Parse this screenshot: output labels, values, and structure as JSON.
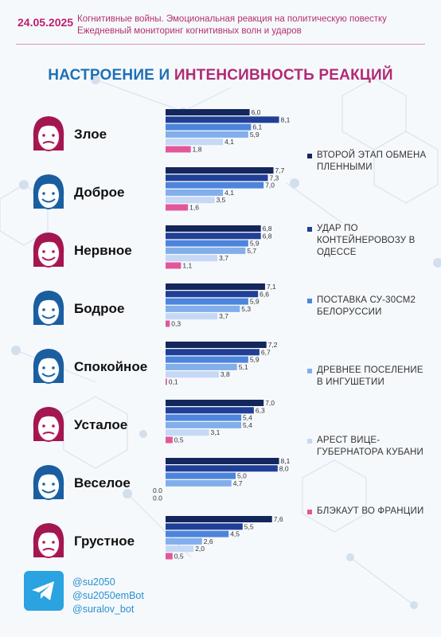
{
  "header": {
    "date": "24.05.2025",
    "line1": "Когнитивные войны. Эмоциональная реакция на политическую повестку",
    "line2": "Ежедневный мониторинг когнитивных волн и ударов"
  },
  "title_part1": "НАСТРОЕНИЕ И ",
  "title_part2": "ИНТЕНСИВНОСТЬ РЕАКЦИЙ",
  "colors": [
    "#14275c",
    "#203f96",
    "#4d84dc",
    "#82aeeb",
    "#c5d8f6",
    "#e2579a"
  ],
  "chart_data": {
    "type": "bar",
    "orientation": "horizontal",
    "title": "НАСТРОЕНИЕ И ИНТЕНСИВНОСТЬ РЕАКЦИЙ",
    "categories": [
      "Злое",
      "Доброе",
      "Нервное",
      "Бодрое",
      "Спокойное",
      "Усталое",
      "Веселое",
      "Грустное"
    ],
    "series": [
      {
        "name": "ВТОРОЙ ЭТАП ОБМЕНА ПЛЕННЫМИ",
        "values": [
          6.0,
          7.7,
          6.8,
          7.1,
          7.2,
          7.0,
          8.1,
          7.6
        ]
      },
      {
        "name": "УДАР ПО КОНТЕЙНЕРОВОЗУ В ОДЕССЕ",
        "values": [
          8.1,
          7.3,
          6.8,
          6.6,
          6.7,
          6.3,
          8.0,
          5.5
        ]
      },
      {
        "name": "ПОСТАВКА СУ-30СМ2 БЕЛОРУССИИ",
        "values": [
          6.1,
          7.0,
          5.9,
          5.9,
          5.9,
          5.4,
          5.0,
          4.5
        ]
      },
      {
        "name": "ДРЕВНЕЕ ПОСЕЛЕНИЕ В ИНГУШЕТИИ",
        "values": [
          5.9,
          4.1,
          5.7,
          5.3,
          5.1,
          5.4,
          4.7,
          2.6
        ]
      },
      {
        "name": "АРЕСТ ВИЦЕ-ГУБЕРНАТОРА КУБАНИ",
        "values": [
          4.1,
          3.5,
          3.7,
          3.7,
          3.8,
          3.1,
          0.0,
          2.0
        ]
      },
      {
        "name": "БЛЭКАУТ ВО ФРАНЦИИ",
        "values": [
          1.8,
          1.6,
          1.1,
          0.3,
          0.1,
          0.5,
          0.0,
          0.5
        ]
      }
    ],
    "value_labels": [
      [
        "6,0",
        "8,1",
        "6,1",
        "5,9",
        "4,1",
        "1,8"
      ],
      [
        "7,7",
        "7,3",
        "7,0",
        "4,1",
        "3,5",
        "1,6"
      ],
      [
        "6,8",
        "6,8",
        "5,9",
        "5,7",
        "3,7",
        "1,1"
      ],
      [
        "7,1",
        "6,6",
        "5,9",
        "5,3",
        "3,7",
        "0,3"
      ],
      [
        "7,2",
        "6,7",
        "5,9",
        "5,1",
        "3,8",
        "0,1"
      ],
      [
        "7,0",
        "6,3",
        "5,4",
        "5,4",
        "3,1",
        "0,5"
      ],
      [
        "8,1",
        "8,0",
        "5,0",
        "4,7",
        "0.0",
        "0.0"
      ],
      [
        "7,6",
        "5,5",
        "4,5",
        "2,6",
        "2,0",
        "0,5"
      ]
    ],
    "legend": [
      "ВТОРОЙ ЭТАП ОБМЕНА ПЛЕННЫМИ",
      "УДАР ПО КОНТЕЙНЕРОВОЗУ В ОДЕССЕ",
      "ПОСТАВКА СУ-30СМ2 БЕЛОРУССИИ",
      "ДРЕВНЕЕ ПОСЕЛЕНИЕ В ИНГУШЕТИИ",
      "АРЕСТ ВИЦЕ-ГУБЕРНАТОРА КУБАНИ",
      "БЛЭКАУТ ВО ФРАНЦИИ"
    ],
    "legend_placement": "right",
    "grid": false
  },
  "faces": [
    "angry-face-icon",
    "happy-face-icon",
    "nervous-face-icon",
    "cheerful-face-icon",
    "calm-face-icon",
    "tired-face-icon",
    "joyful-face-icon",
    "sad-face-icon"
  ],
  "footer": {
    "handles": [
      "@su2050",
      "@su2050emBot",
      "@suralov_bot"
    ]
  }
}
